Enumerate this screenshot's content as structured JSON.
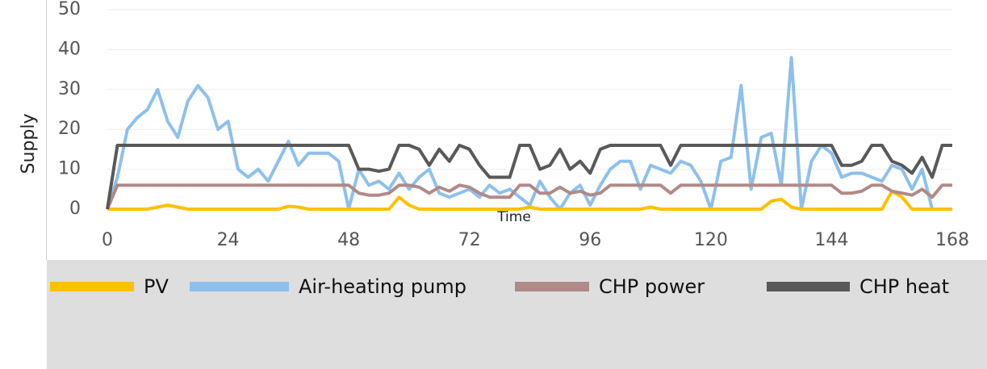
{
  "chart_data": {
    "type": "line",
    "x_label": "Time",
    "y_label": "Supply",
    "x": [
      0,
      2,
      4,
      6,
      8,
      10,
      12,
      14,
      16,
      18,
      20,
      22,
      24,
      26,
      28,
      30,
      32,
      34,
      36,
      38,
      40,
      42,
      44,
      46,
      48,
      50,
      52,
      54,
      56,
      58,
      60,
      62,
      64,
      66,
      68,
      70,
      72,
      74,
      76,
      78,
      80,
      82,
      84,
      86,
      88,
      90,
      92,
      94,
      96,
      98,
      100,
      102,
      104,
      106,
      108,
      110,
      112,
      114,
      116,
      118,
      120,
      122,
      124,
      126,
      128,
      130,
      132,
      134,
      136,
      138,
      140,
      142,
      144,
      146,
      148,
      150,
      152,
      154,
      156,
      158,
      160,
      162,
      164,
      166,
      168
    ],
    "series": [
      {
        "name": "PV",
        "color": "#ffc000",
        "values": [
          0,
          0,
          0,
          0,
          0,
          0.5,
          1,
          0.5,
          0,
          0,
          0,
          0,
          0,
          0,
          0,
          0,
          0,
          0,
          0.7,
          0.5,
          0,
          0,
          0,
          0,
          0,
          0,
          0,
          0,
          0,
          3,
          1,
          0,
          0,
          0,
          0,
          0,
          0,
          0,
          0,
          0,
          0,
          0,
          0.5,
          0,
          0,
          0,
          0,
          0,
          0,
          0,
          0,
          0,
          0,
          0,
          0.5,
          0,
          0,
          0,
          0,
          0,
          0,
          0,
          0,
          0,
          0,
          0,
          2,
          2.5,
          0.5,
          0,
          0,
          0,
          0,
          0,
          0,
          0,
          0,
          0,
          4.5,
          3,
          0,
          0,
          0,
          0,
          0
        ]
      },
      {
        "name": "Air-heating pump",
        "color": "#8dc0ee",
        "values": [
          0,
          8,
          20,
          23,
          25,
          30,
          22,
          18,
          27,
          31,
          28,
          20,
          22,
          10,
          8,
          10,
          7,
          12,
          17,
          11,
          14,
          14,
          14,
          12,
          0,
          10,
          6,
          7,
          5,
          9,
          5,
          8,
          10,
          4,
          3,
          4,
          5,
          3,
          6,
          4,
          5,
          3,
          1,
          7,
          3,
          0,
          4,
          6,
          1,
          6,
          10,
          12,
          12,
          5,
          11,
          10,
          9,
          12,
          11,
          7,
          0,
          12,
          13,
          31,
          5,
          18,
          19,
          6,
          38,
          0,
          12,
          16,
          14,
          8,
          9,
          9,
          8,
          7,
          11,
          10,
          5,
          10,
          0,
          0,
          0
        ]
      },
      {
        "name": "CHP power",
        "color": "#b08a88",
        "values": [
          0,
          6,
          6,
          6,
          6,
          6,
          6,
          6,
          6,
          6,
          6,
          6,
          6,
          6,
          6,
          6,
          6,
          6,
          6,
          6,
          6,
          6,
          6,
          6,
          6,
          4,
          3.5,
          3.5,
          4,
          6,
          6,
          5.5,
          4,
          5.5,
          4.5,
          6,
          5.5,
          4,
          3,
          3,
          3,
          6,
          6,
          4,
          4,
          5.5,
          4,
          4.5,
          3.5,
          4,
          6,
          6,
          6,
          6,
          6,
          6,
          4,
          6,
          6,
          6,
          6,
          6,
          6,
          6,
          6,
          6,
          6,
          6,
          6,
          6,
          6,
          6,
          6,
          4,
          4,
          4.5,
          6,
          6,
          4.5,
          4,
          3.5,
          5,
          3,
          6,
          6
        ]
      },
      {
        "name": "CHP heat",
        "color": "#595959",
        "values": [
          0,
          16,
          16,
          16,
          16,
          16,
          16,
          16,
          16,
          16,
          16,
          16,
          16,
          16,
          16,
          16,
          16,
          16,
          16,
          16,
          16,
          16,
          16,
          16,
          16,
          10,
          10,
          9.5,
          10,
          16,
          16,
          15,
          11,
          15,
          12,
          16,
          15,
          11,
          8,
          8,
          8,
          16,
          16,
          10,
          11,
          15,
          10,
          12,
          9,
          15,
          16,
          16,
          16,
          16,
          16,
          16,
          11,
          16,
          16,
          16,
          16,
          16,
          16,
          16,
          16,
          16,
          16,
          16,
          16,
          16,
          16,
          16,
          16,
          11,
          11,
          12,
          16,
          16,
          12,
          11,
          9,
          13,
          8,
          16,
          16
        ]
      }
    ],
    "xlim": [
      0,
      168
    ],
    "xticks": [
      0,
      24,
      48,
      72,
      96,
      120,
      144,
      168
    ],
    "ylim": [
      0,
      50
    ],
    "yticks": [
      0,
      10,
      20,
      30,
      40,
      50
    ],
    "grid": true
  }
}
